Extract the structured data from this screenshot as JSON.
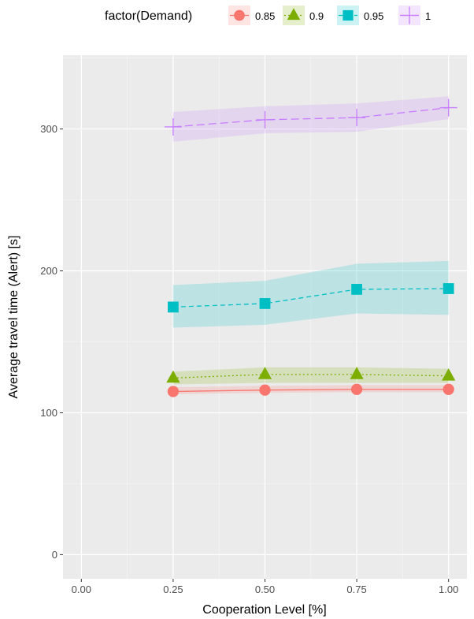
{
  "chart_data": {
    "type": "line",
    "xlabel": "Cooperation Level [%]",
    "ylabel": "Average travel time (Alert) [s]",
    "xlim": [
      -0.05,
      1.05
    ],
    "ylim": [
      -17,
      352
    ],
    "x_ticks": [
      0.0,
      0.25,
      0.5,
      0.75,
      1.0
    ],
    "x_tick_labels": [
      "0.00",
      "0.25",
      "0.50",
      "0.75",
      "1.00"
    ],
    "y_ticks": [
      0,
      100,
      200,
      300
    ],
    "y_tick_labels": [
      "0",
      "100",
      "200",
      "300"
    ],
    "grid": true,
    "legend": {
      "title": "factor(Demand)",
      "position": "top",
      "labels": [
        "0.85",
        "0.9",
        "0.95",
        "1"
      ]
    },
    "series": [
      {
        "name": "0.85",
        "color": "#F8766D",
        "linestyle": "solid",
        "marker": "circle",
        "x": [
          0.25,
          0.5,
          0.75,
          1.0
        ],
        "y": [
          115,
          116,
          116.5,
          116.5
        ],
        "band_low": [
          113,
          114,
          114.5,
          114.5
        ],
        "band_high": [
          118,
          119,
          119.5,
          119.5
        ]
      },
      {
        "name": "0.9",
        "color": "#7CAE00",
        "linestyle": "dotted",
        "marker": "triangle",
        "x": [
          0.25,
          0.5,
          0.75,
          1.0
        ],
        "y": [
          124.5,
          127,
          127,
          126
        ],
        "band_low": [
          120,
          121,
          121,
          121
        ],
        "band_high": [
          129,
          132,
          132,
          131
        ]
      },
      {
        "name": "0.95",
        "color": "#00BFC4",
        "linestyle": "dashed",
        "marker": "square",
        "x": [
          0.25,
          0.5,
          0.75,
          1.0
        ],
        "y": [
          174.5,
          177,
          187,
          187.5
        ],
        "band_low": [
          160,
          162,
          170,
          169
        ],
        "band_high": [
          190,
          193,
          205,
          207
        ]
      },
      {
        "name": "1",
        "color": "#C77CFF",
        "linestyle": "longdash",
        "marker": "plus",
        "x": [
          0.25,
          0.5,
          0.75,
          1.0
        ],
        "y": [
          301.5,
          306.5,
          308,
          315
        ],
        "band_low": [
          291,
          297,
          298,
          307
        ],
        "band_high": [
          312,
          316,
          318,
          323
        ]
      }
    ]
  }
}
